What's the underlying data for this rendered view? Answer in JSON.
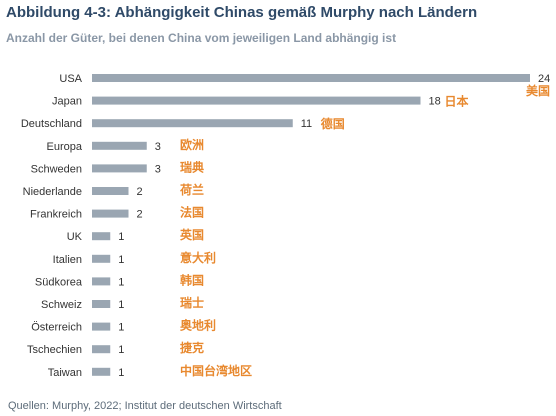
{
  "header": {
    "title": "Abbildung 4-3: Abhängigkeit Chinas gemäß Murphy nach Ländern",
    "subtitle": "Anzahl der Güter, bei denen China vom jeweiligen Land abhängig ist"
  },
  "footer": {
    "source": "Quellen: Murphy, 2022; Institut der deutschen Wirtschaft"
  },
  "colors": {
    "bar": "#9aa6b2",
    "annotation": "#e8892f",
    "title": "#2f4a68"
  },
  "chart_data": {
    "type": "bar",
    "orientation": "horizontal",
    "categories": [
      "USA",
      "Japan",
      "Deutschland",
      "Europa",
      "Schweden",
      "Niederlande",
      "Frankreich",
      "UK",
      "Italien",
      "Südkorea",
      "Schweiz",
      "Österreich",
      "Tschechien",
      "Taiwan"
    ],
    "values": [
      24,
      18,
      11,
      3,
      3,
      2,
      2,
      1,
      1,
      1,
      1,
      1,
      1,
      1
    ],
    "annotations": [
      "美国",
      "日本",
      "德国",
      "欧洲",
      "瑞典",
      "荷兰",
      "法国",
      "英国",
      "意大利",
      "韩国",
      "瑞士",
      "奥地利",
      "捷克",
      "中国台湾地区"
    ],
    "xlim": [
      0,
      24
    ],
    "grid": false,
    "legend": false
  }
}
